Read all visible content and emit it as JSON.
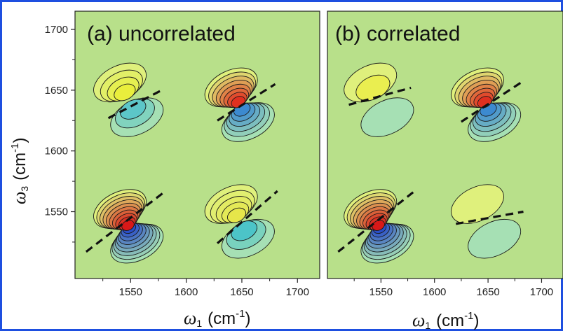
{
  "chart_data": [
    {
      "type": "contour",
      "panel_label": "(a) uncorrelated",
      "xlabel": "ω1 (cm-1)",
      "ylabel": "ω3 (cm-1)",
      "xlim": [
        1500,
        1720
      ],
      "ylim": [
        1495,
        1715
      ],
      "xticks": [
        1550,
        1600,
        1650,
        1700
      ],
      "yticks": [
        1550,
        1600,
        1650,
        1700
      ],
      "peaks": [
        {
          "center": [
            1548,
            1642
          ],
          "diagonal_line": [
            [
              1530,
              1627
            ],
            [
              1580,
              1651
            ]
          ],
          "positive_rings": 4,
          "negative_rings": 3,
          "pos_core": "#e9ee3c",
          "neg_core": "#5cc6c8"
        },
        {
          "center": [
            1648,
            1638
          ],
          "diagonal_line": [
            [
              1628,
              1625
            ],
            [
              1680,
              1655
            ]
          ],
          "positive_rings": 8,
          "negative_rings": 6,
          "pos_core": "#e03020",
          "neg_core": "#3c8ad0"
        },
        {
          "center": [
            1548,
            1538
          ],
          "diagonal_line": [
            [
              1510,
              1517
            ],
            [
              1580,
              1566
            ]
          ],
          "positive_rings": 10,
          "negative_rings": 9,
          "pos_core": "#d81818",
          "neg_core": "#2a4fc8"
        },
        {
          "center": [
            1648,
            1542
          ],
          "diagonal_line": [
            [
              1628,
              1524
            ],
            [
              1682,
              1567
            ]
          ],
          "positive_rings": 5,
          "negative_rings": 3,
          "pos_core": "#e6e64a",
          "neg_core": "#4cc4c8"
        }
      ]
    },
    {
      "type": "contour",
      "panel_label": "(b) correlated",
      "xlabel": "ω1 (cm-1)",
      "xlim": [
        1500,
        1720
      ],
      "ylim": [
        1495,
        1715
      ],
      "xticks": [
        1550,
        1600,
        1650,
        1700
      ],
      "peaks": [
        {
          "center": [
            1548,
            1642
          ],
          "diagonal_line": [
            [
              1520,
              1638
            ],
            [
              1578,
              1652
            ]
          ],
          "positive_rings": 2,
          "negative_rings": 1,
          "pos_core": "#eaee50",
          "neg_core": "#6ac6c0"
        },
        {
          "center": [
            1648,
            1638
          ],
          "diagonal_line": [
            [
              1625,
              1624
            ],
            [
              1682,
              1657
            ]
          ],
          "positive_rings": 8,
          "negative_rings": 6,
          "pos_core": "#e03020",
          "neg_core": "#3c8ad0"
        },
        {
          "center": [
            1548,
            1538
          ],
          "diagonal_line": [
            [
              1510,
              1517
            ],
            [
              1580,
              1566
            ]
          ],
          "positive_rings": 10,
          "negative_rings": 9,
          "pos_core": "#d81818",
          "neg_core": "#2a4fc8"
        },
        {
          "center": [
            1648,
            1542
          ],
          "diagonal_line": [
            [
              1620,
              1540
            ],
            [
              1683,
              1550
            ]
          ],
          "positive_rings": 1,
          "negative_rings": 1,
          "pos_core": "#e8ee4a",
          "neg_core": "#8ed4b0"
        }
      ]
    }
  ],
  "colors": {
    "background": "#b8e08a",
    "frame_blue": "#1e4fe0",
    "positive_outer": "#dff07c",
    "negative_outer": "#a6e0b4"
  }
}
